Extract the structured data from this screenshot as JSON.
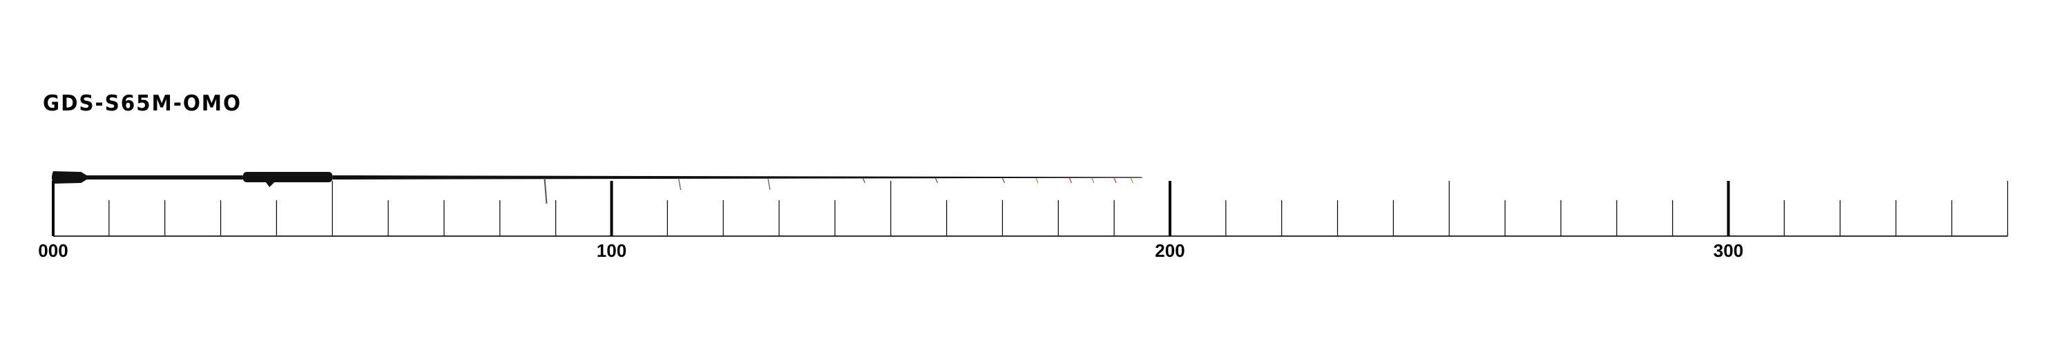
{
  "title": "GDS-S65M-OMO",
  "ruler": {
    "min": 0,
    "max": 350,
    "minor_step": 10,
    "mid_step": 50,
    "major_step": 100,
    "labels": [
      {
        "value": 0,
        "text": "000"
      },
      {
        "value": 100,
        "text": "100"
      },
      {
        "value": 200,
        "text": "200"
      },
      {
        "value": 300,
        "text": "300"
      }
    ]
  },
  "rod": {
    "length": 195,
    "grip_end": 5,
    "reel_seat_start": 34,
    "reel_seat_end": 50,
    "guide_positions": [
      88,
      112,
      128,
      145,
      158,
      170,
      176,
      182,
      186,
      190,
      193
    ]
  },
  "colors": {
    "ink": "#000000",
    "rod": "#111111",
    "guide_accent": "#c0392b",
    "guide_green": "#8aa020"
  }
}
